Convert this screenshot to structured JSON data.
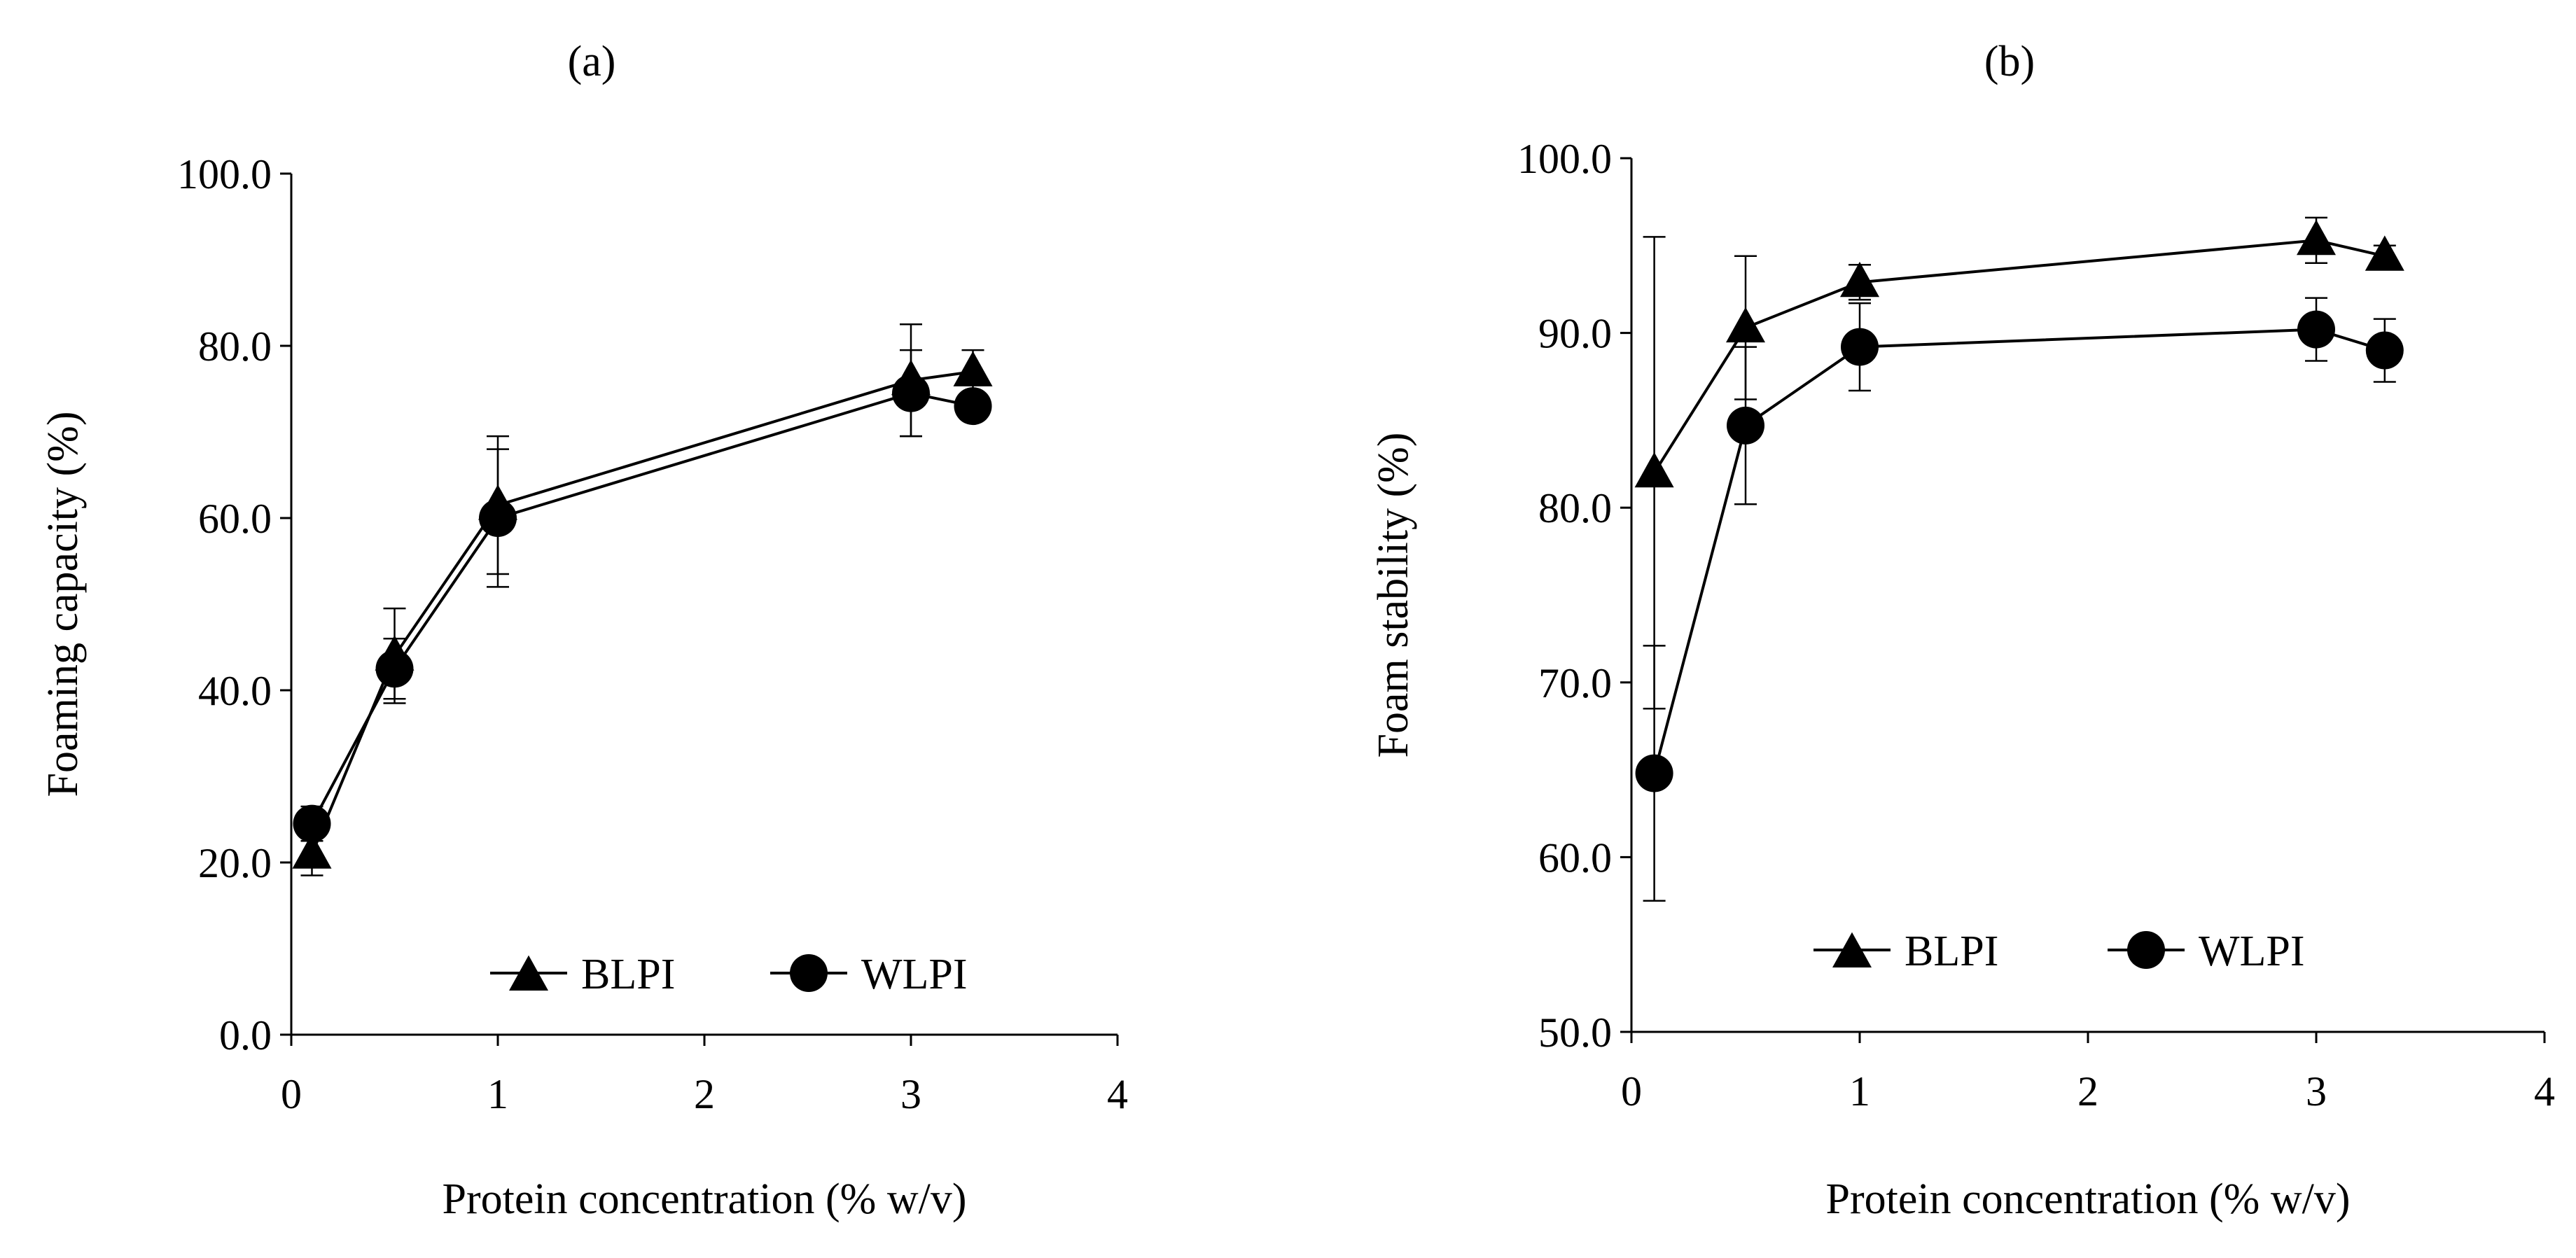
{
  "chart_data": [
    {
      "type": "line",
      "panel_label": "(a)",
      "xlabel": "Protein concentration (% w/v)",
      "ylabel": "Foaming capacity (%)",
      "xlim": [
        0,
        4
      ],
      "ylim": [
        0,
        100
      ],
      "xticks": [
        "0",
        "1",
        "2",
        "3",
        "4"
      ],
      "yticks": [
        "0.0",
        "20.0",
        "40.0",
        "60.0",
        "80.0",
        "100.0"
      ],
      "legend": [
        "BLPI",
        "WLPI"
      ],
      "legend_position": "bottom-right",
      "series": [
        {
          "name": "BLPI",
          "marker": "triangle",
          "x": [
            0.1,
            0.5,
            1.0,
            3.0,
            3.3
          ],
          "y": [
            21.0,
            44.0,
            61.5,
            76.0,
            77.0
          ],
          "err": [
            2.5,
            5.5,
            8.0,
            6.5,
            2.5
          ]
        },
        {
          "name": "WLPI",
          "marker": "circle",
          "x": [
            0.1,
            0.5,
            1.0,
            3.0,
            3.3
          ],
          "y": [
            24.5,
            42.5,
            60.0,
            74.5,
            73.0
          ],
          "err": [
            2.0,
            3.5,
            8.0,
            5.0,
            1.5
          ]
        }
      ]
    },
    {
      "type": "line",
      "panel_label": "(b)",
      "xlabel": "Protein concentration (% w/v)",
      "ylabel": "Foam stability (%)",
      "xlim": [
        0,
        4
      ],
      "ylim": [
        50,
        100
      ],
      "xticks": [
        "0",
        "1",
        "2",
        "3",
        "4"
      ],
      "yticks": [
        "50.0",
        "60.0",
        "70.0",
        "80.0",
        "90.0",
        "100.0"
      ],
      "legend": [
        "BLPI",
        "WLPI"
      ],
      "legend_position": "bottom-right",
      "series": [
        {
          "name": "BLPI",
          "marker": "triangle",
          "x": [
            0.1,
            0.5,
            1.0,
            3.0,
            3.3
          ],
          "y": [
            82.0,
            90.3,
            92.9,
            95.3,
            94.4
          ],
          "err": [
            13.5,
            4.1,
            1.0,
            1.3,
            0.6
          ]
        },
        {
          "name": "WLPI",
          "marker": "circle",
          "x": [
            0.1,
            0.5,
            1.0,
            3.0,
            3.3
          ],
          "y": [
            64.8,
            84.7,
            89.2,
            90.2,
            89.0
          ],
          "err": [
            7.3,
            4.5,
            2.5,
            1.8,
            1.8
          ]
        }
      ]
    }
  ]
}
